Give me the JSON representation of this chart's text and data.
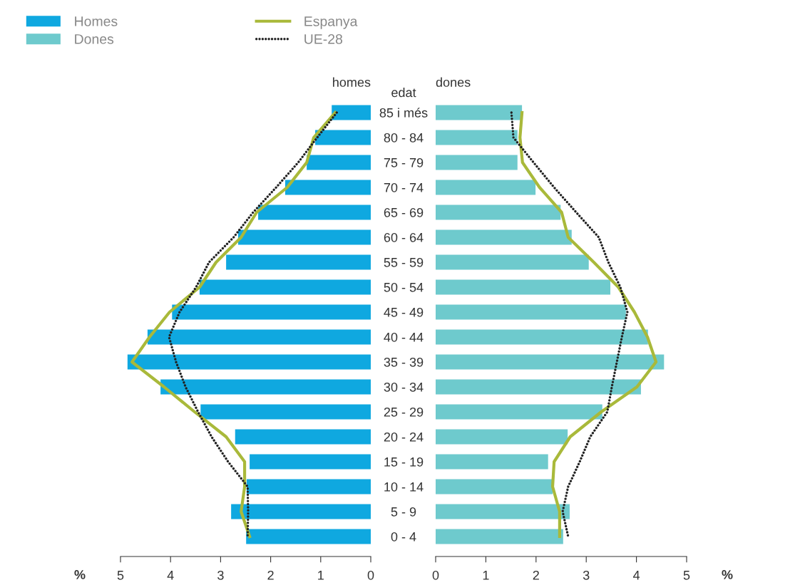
{
  "chart_data": [
    {
      "type": "bar",
      "orientation": "horizontal",
      "title": "homes",
      "ylabel": "edat",
      "xlabel": "%",
      "legend": "top",
      "grid": false,
      "tick_labels": "xy",
      "categories": [
        "85 i més",
        "80 - 84",
        "75 - 79",
        "70 - 74",
        "65 - 69",
        "60 - 64",
        "55 - 59",
        "50 - 54",
        "45 - 49",
        "40 - 44",
        "35 - 39",
        "30 - 34",
        "25 - 29",
        "20 - 24",
        "15 - 19",
        "10 - 14",
        "5 - 9",
        "0 - 4"
      ],
      "xlim": [
        5,
        0
      ],
      "xticks": [
        5,
        4,
        3,
        2,
        1,
        0
      ],
      "series": [
        {
          "name": "Homes",
          "color": "#0fa8e0",
          "values": [
            0.78,
            1.11,
            1.28,
            1.71,
            2.25,
            2.65,
            2.89,
            3.42,
            3.97,
            4.46,
            4.86,
            4.2,
            3.4,
            2.71,
            2.42,
            2.48,
            2.79,
            2.49
          ]
        },
        {
          "name": "Espanya",
          "type": "line",
          "line_style": "solid",
          "color": "#a9b93a",
          "values": [
            0.71,
            1.14,
            1.28,
            1.67,
            2.28,
            2.59,
            3.09,
            3.42,
            4.02,
            4.42,
            4.77,
            4.13,
            3.52,
            2.89,
            2.52,
            2.52,
            2.59,
            2.42
          ]
        },
        {
          "name": "UE-28",
          "type": "line",
          "line_style": "dotted",
          "color": "#222222",
          "values": [
            0.68,
            1.07,
            1.45,
            1.89,
            2.35,
            2.74,
            3.23,
            3.49,
            3.82,
            4.03,
            3.89,
            3.7,
            3.45,
            3.18,
            2.85,
            2.46,
            2.45,
            2.46
          ]
        }
      ]
    },
    {
      "type": "bar",
      "orientation": "horizontal",
      "title": "dones",
      "xlabel": "%",
      "legend": "top",
      "grid": false,
      "tick_labels": "x",
      "categories": [
        null,
        null,
        null,
        null,
        null,
        null,
        null,
        null,
        null,
        null,
        null,
        null,
        null,
        null,
        null,
        null,
        null,
        null
      ],
      "xlim": [
        0,
        5
      ],
      "xticks": [
        0,
        1,
        2,
        3,
        4,
        5
      ],
      "series": [
        {
          "name": "Dones",
          "color": "#6ecacd",
          "values": [
            1.72,
            1.63,
            1.63,
            1.99,
            2.49,
            2.71,
            3.05,
            3.48,
            3.79,
            4.23,
            4.55,
            4.09,
            3.32,
            2.63,
            2.24,
            2.33,
            2.67,
            2.54
          ]
        },
        {
          "name": "Espanya",
          "type": "line",
          "line_style": "solid",
          "color": "#a9b93a",
          "values": [
            1.72,
            1.68,
            1.73,
            2.07,
            2.51,
            2.64,
            3.15,
            3.64,
            3.96,
            4.22,
            4.39,
            4.01,
            3.3,
            2.68,
            2.36,
            2.33,
            2.47,
            2.47
          ]
        },
        {
          "name": "UE-28",
          "type": "line",
          "line_style": "dotted",
          "color": "#222222",
          "values": [
            1.51,
            1.55,
            1.95,
            2.36,
            2.8,
            3.25,
            3.44,
            3.68,
            3.82,
            3.71,
            3.61,
            3.51,
            3.42,
            3.08,
            2.87,
            2.64,
            2.53,
            2.64
          ]
        }
      ]
    }
  ]
}
